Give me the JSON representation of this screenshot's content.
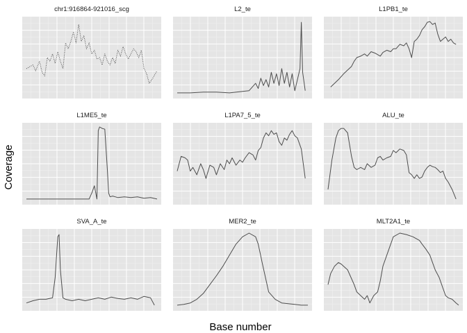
{
  "chart_data": {
    "type": "line",
    "xlabel": "Base number",
    "ylabel": "Coverage",
    "layout": "3x3 facet grid",
    "axis_ticks": "none",
    "grid": true,
    "colors": {
      "panel_bg": "#e5e5e5",
      "grid_major": "#ffffff",
      "grid_minor": "#f2f2f2",
      "line": "#4d4d4d",
      "text": "#1a1a1a"
    },
    "panels": [
      {
        "title": "chr1:916864-921016_scg",
        "style": "dotted",
        "x": [
          0,
          0.03,
          0.05,
          0.07,
          0.1,
          0.12,
          0.14,
          0.16,
          0.18,
          0.2,
          0.22,
          0.24,
          0.26,
          0.28,
          0.3,
          0.32,
          0.34,
          0.36,
          0.38,
          0.4,
          0.42,
          0.44,
          0.46,
          0.48,
          0.5,
          0.52,
          0.54,
          0.56,
          0.58,
          0.6,
          0.62,
          0.64,
          0.66,
          0.68,
          0.7,
          0.72,
          0.74,
          0.76,
          0.78,
          0.8,
          0.82,
          0.84,
          0.86,
          0.88,
          0.9,
          0.92,
          0.94,
          0.96,
          1.0
        ],
        "y": [
          0.35,
          0.38,
          0.4,
          0.32,
          0.45,
          0.3,
          0.25,
          0.5,
          0.45,
          0.55,
          0.42,
          0.58,
          0.45,
          0.35,
          0.7,
          0.62,
          0.72,
          0.85,
          0.7,
          0.95,
          0.72,
          0.8,
          0.62,
          0.7,
          0.55,
          0.6,
          0.48,
          0.5,
          0.4,
          0.55,
          0.45,
          0.4,
          0.5,
          0.42,
          0.6,
          0.52,
          0.65,
          0.55,
          0.48,
          0.55,
          0.62,
          0.58,
          0.5,
          0.6,
          0.35,
          0.28,
          0.15,
          0.2,
          0.32
        ]
      },
      {
        "title": "L2_te",
        "style": "line",
        "x": [
          0,
          0.1,
          0.2,
          0.3,
          0.4,
          0.5,
          0.55,
          0.6,
          0.62,
          0.64,
          0.66,
          0.68,
          0.7,
          0.72,
          0.74,
          0.76,
          0.78,
          0.8,
          0.82,
          0.84,
          0.86,
          0.88,
          0.9,
          0.92,
          0.94,
          0.95,
          0.96,
          0.98
        ],
        "y": [
          0.02,
          0.02,
          0.03,
          0.03,
          0.02,
          0.04,
          0.05,
          0.15,
          0.08,
          0.22,
          0.12,
          0.2,
          0.1,
          0.3,
          0.15,
          0.28,
          0.12,
          0.35,
          0.15,
          0.3,
          0.1,
          0.28,
          0.05,
          0.2,
          0.35,
          0.98,
          0.3,
          0.05
        ]
      },
      {
        "title": "L1PB1_te",
        "style": "line",
        "x": [
          0.02,
          0.05,
          0.08,
          0.12,
          0.15,
          0.18,
          0.2,
          0.22,
          0.25,
          0.28,
          0.3,
          0.33,
          0.36,
          0.4,
          0.42,
          0.45,
          0.48,
          0.5,
          0.52,
          0.55,
          0.58,
          0.6,
          0.62,
          0.64,
          0.66,
          0.68,
          0.7,
          0.72,
          0.74,
          0.76,
          0.78,
          0.8,
          0.82,
          0.84,
          0.86,
          0.88,
          0.9,
          0.92,
          0.94,
          0.96,
          0.98
        ],
        "y": [
          0.1,
          0.15,
          0.2,
          0.28,
          0.33,
          0.38,
          0.45,
          0.5,
          0.52,
          0.55,
          0.52,
          0.58,
          0.56,
          0.52,
          0.57,
          0.6,
          0.58,
          0.62,
          0.62,
          0.68,
          0.66,
          0.7,
          0.62,
          0.5,
          0.72,
          0.75,
          0.8,
          0.88,
          0.92,
          0.98,
          0.99,
          0.95,
          0.97,
          0.82,
          0.72,
          0.75,
          0.78,
          0.72,
          0.75,
          0.7,
          0.68
        ]
      },
      {
        "title": "L1ME5_te",
        "style": "line",
        "x": [
          0.0,
          0.1,
          0.2,
          0.3,
          0.4,
          0.48,
          0.5,
          0.52,
          0.54,
          0.55,
          0.56,
          0.58,
          0.6,
          0.62,
          0.63,
          0.64,
          0.66,
          0.68,
          0.7,
          0.75,
          0.8,
          0.85,
          0.9,
          0.95,
          1.0
        ],
        "y": [
          0.02,
          0.02,
          0.02,
          0.02,
          0.02,
          0.02,
          0.1,
          0.2,
          0.02,
          0.95,
          1.0,
          0.98,
          0.97,
          0.4,
          0.1,
          0.05,
          0.06,
          0.05,
          0.04,
          0.05,
          0.04,
          0.05,
          0.03,
          0.04,
          0.02
        ]
      },
      {
        "title": "L1PA7_5_te",
        "style": "line",
        "x": [
          0.0,
          0.03,
          0.06,
          0.08,
          0.1,
          0.12,
          0.15,
          0.18,
          0.2,
          0.22,
          0.25,
          0.28,
          0.3,
          0.33,
          0.36,
          0.38,
          0.4,
          0.42,
          0.45,
          0.48,
          0.5,
          0.52,
          0.55,
          0.58,
          0.6,
          0.62,
          0.64,
          0.66,
          0.68,
          0.7,
          0.72,
          0.74,
          0.76,
          0.78,
          0.8,
          0.82,
          0.84,
          0.86,
          0.88,
          0.9,
          0.92,
          0.95,
          0.98
        ],
        "y": [
          0.4,
          0.6,
          0.58,
          0.55,
          0.4,
          0.45,
          0.35,
          0.5,
          0.42,
          0.3,
          0.48,
          0.45,
          0.35,
          0.5,
          0.42,
          0.55,
          0.5,
          0.58,
          0.48,
          0.55,
          0.52,
          0.58,
          0.65,
          0.62,
          0.55,
          0.68,
          0.72,
          0.85,
          0.92,
          0.88,
          0.95,
          0.9,
          0.92,
          0.8,
          0.75,
          0.85,
          0.82,
          0.9,
          0.95,
          0.88,
          0.85,
          0.7,
          0.3
        ]
      },
      {
        "title": "ALU_te",
        "style": "line",
        "x": [
          0.0,
          0.03,
          0.06,
          0.08,
          0.1,
          0.12,
          0.15,
          0.18,
          0.2,
          0.22,
          0.25,
          0.28,
          0.3,
          0.33,
          0.36,
          0.38,
          0.4,
          0.42,
          0.45,
          0.48,
          0.5,
          0.52,
          0.55,
          0.58,
          0.6,
          0.62,
          0.64,
          0.66,
          0.68,
          0.7,
          0.72,
          0.74,
          0.76,
          0.78,
          0.8,
          0.82,
          0.84,
          0.86,
          0.88,
          0.9,
          0.92,
          0.95,
          0.98
        ],
        "y": [
          0.15,
          0.55,
          0.85,
          0.95,
          0.98,
          0.98,
          0.92,
          0.6,
          0.45,
          0.42,
          0.45,
          0.42,
          0.5,
          0.45,
          0.48,
          0.58,
          0.6,
          0.55,
          0.58,
          0.6,
          0.68,
          0.65,
          0.7,
          0.68,
          0.62,
          0.38,
          0.35,
          0.3,
          0.35,
          0.3,
          0.32,
          0.4,
          0.45,
          0.48,
          0.46,
          0.45,
          0.42,
          0.38,
          0.4,
          0.3,
          0.25,
          0.15,
          0.02
        ]
      },
      {
        "title": "SVA_A_te",
        "style": "line",
        "x": [
          0.0,
          0.05,
          0.1,
          0.15,
          0.2,
          0.22,
          0.24,
          0.25,
          0.26,
          0.28,
          0.3,
          0.35,
          0.4,
          0.45,
          0.5,
          0.55,
          0.6,
          0.65,
          0.7,
          0.75,
          0.8,
          0.85,
          0.9,
          0.95,
          0.98
        ],
        "y": [
          0.05,
          0.08,
          0.1,
          0.1,
          0.12,
          0.4,
          0.95,
          0.98,
          0.5,
          0.12,
          0.1,
          0.08,
          0.1,
          0.08,
          0.1,
          0.12,
          0.1,
          0.13,
          0.11,
          0.1,
          0.12,
          0.1,
          0.14,
          0.12,
          0.02
        ]
      },
      {
        "title": "MER2_te",
        "style": "line",
        "x": [
          0.0,
          0.05,
          0.1,
          0.15,
          0.2,
          0.25,
          0.3,
          0.35,
          0.4,
          0.45,
          0.5,
          0.55,
          0.6,
          0.62,
          0.65,
          0.7,
          0.75,
          0.8,
          0.85,
          0.9,
          0.95,
          1.0
        ],
        "y": [
          0.02,
          0.03,
          0.05,
          0.1,
          0.18,
          0.3,
          0.42,
          0.55,
          0.7,
          0.85,
          0.95,
          1.0,
          0.95,
          0.85,
          0.6,
          0.2,
          0.1,
          0.05,
          0.04,
          0.03,
          0.02,
          0.02
        ]
      },
      {
        "title": "MLT2A1_te",
        "style": "line",
        "x": [
          0.0,
          0.02,
          0.05,
          0.08,
          0.1,
          0.15,
          0.2,
          0.22,
          0.25,
          0.28,
          0.3,
          0.32,
          0.35,
          0.38,
          0.4,
          0.42,
          0.45,
          0.48,
          0.5,
          0.55,
          0.6,
          0.65,
          0.7,
          0.72,
          0.75,
          0.78,
          0.8,
          0.82,
          0.85,
          0.88,
          0.9,
          0.92,
          0.95,
          0.98,
          1.0
        ],
        "y": [
          0.3,
          0.45,
          0.55,
          0.6,
          0.58,
          0.5,
          0.3,
          0.2,
          0.15,
          0.1,
          0.15,
          0.05,
          0.15,
          0.2,
          0.35,
          0.55,
          0.7,
          0.85,
          0.95,
          1.0,
          0.98,
          0.95,
          0.9,
          0.85,
          0.78,
          0.7,
          0.6,
          0.5,
          0.4,
          0.25,
          0.15,
          0.12,
          0.1,
          0.05,
          0.02
        ]
      }
    ]
  }
}
